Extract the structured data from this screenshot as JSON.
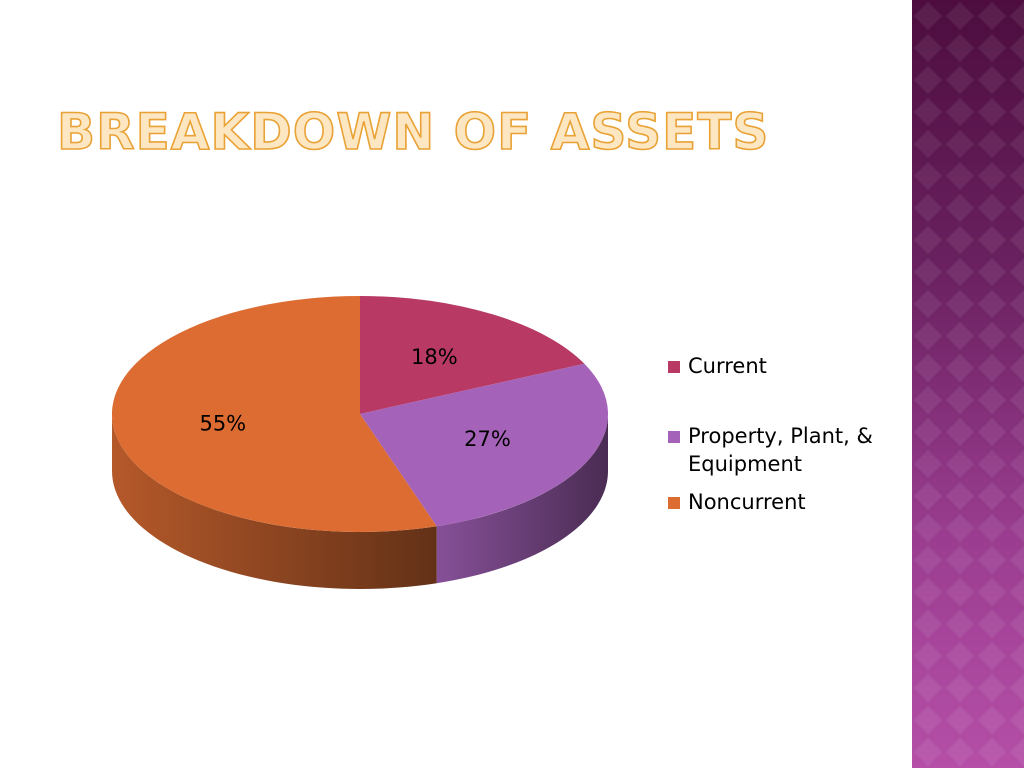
{
  "slide": {
    "title": "Breakdown of Assets"
  },
  "chart_data": {
    "type": "pie",
    "style": "3d",
    "title": "",
    "categories": [
      "Current",
      "Property, Plant, & Equipment",
      "Noncurrent"
    ],
    "values": [
      18,
      27,
      55
    ],
    "unit": "%",
    "data_labels": [
      "18%",
      "27%",
      "55%"
    ],
    "colors": [
      "#b83a64",
      "#a462b9",
      "#dd6c33"
    ],
    "legend_position": "right"
  },
  "theme": {
    "title_fill": "#fde7c2",
    "title_outline": "#e9a235",
    "band_top": "#4d0d3e",
    "band_bottom": "#b54fa8"
  }
}
